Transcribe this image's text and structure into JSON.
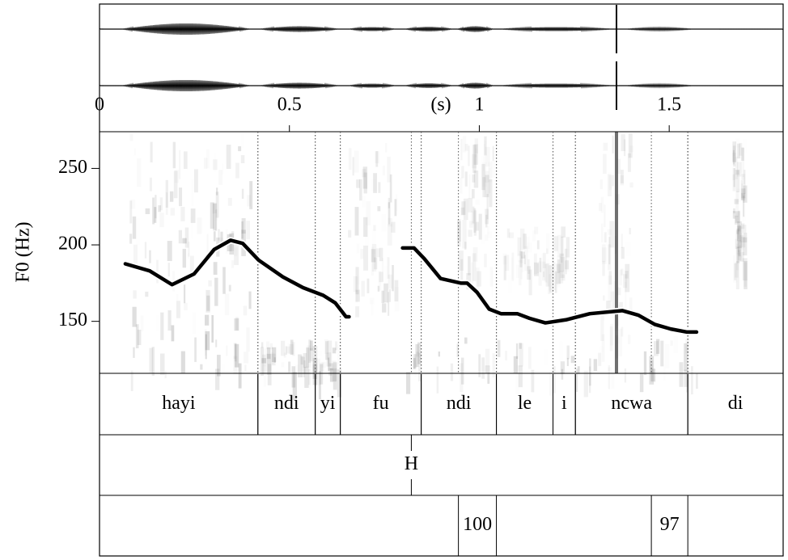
{
  "chart_data": {
    "type": "line",
    "x_label": "(s)",
    "y_label": "F0 (Hz)",
    "xlim": [
      0,
      1.8
    ],
    "xticks": [
      0,
      0.5,
      1,
      1.5
    ],
    "ylim": [
      116,
      274
    ],
    "yticks": [
      150,
      200,
      250
    ],
    "series": [
      {
        "color": "#000000",
        "x": [
          0.068,
          0.132,
          0.191,
          0.249,
          0.302,
          0.345,
          0.377,
          0.419,
          0.483,
          0.536,
          0.589,
          0.621,
          0.649,
          0.657,
          null,
          0.798,
          0.828,
          0.855,
          0.898,
          0.951,
          0.968,
          0.994,
          1.026,
          1.057,
          1.1,
          1.132,
          1.174,
          1.228,
          1.291,
          1.377,
          1.419,
          1.462,
          1.504,
          1.547,
          1.572
        ],
        "values": [
          187.6,
          183,
          174,
          181,
          197,
          203,
          201,
          190,
          179,
          172,
          167,
          162,
          153,
          153,
          null,
          198,
          198,
          191,
          178,
          175,
          175,
          169,
          158,
          155,
          155,
          152,
          149,
          151,
          155,
          157,
          154,
          148,
          145,
          143,
          143
        ]
      }
    ],
    "tiers": [
      {
        "intervals": [
          {
            "label": "hayi",
            "start": 0,
            "end": 0.417
          },
          {
            "label": "ndi",
            "start": 0.417,
            "end": 0.568
          },
          {
            "label": "yi",
            "start": 0.568,
            "end": 0.634
          },
          {
            "label": "fu",
            "start": 0.634,
            "end": 0.847
          },
          {
            "label": "ndi",
            "start": 0.847,
            "end": 1.045
          },
          {
            "label": "le",
            "start": 1.045,
            "end": 1.194
          },
          {
            "label": "i",
            "start": 1.194,
            "end": 1.253
          },
          {
            "label": "ncwa",
            "start": 1.253,
            "end": 1.549
          },
          {
            "label": "di",
            "start": 1.549,
            "end": 1.8
          }
        ]
      },
      {
        "points": [
          {
            "label": "H",
            "time": 0.821
          }
        ]
      },
      {
        "intervals": [
          {
            "label": "100",
            "start": 0.945,
            "end": 1.045
          },
          {
            "label": "97",
            "start": 1.453,
            "end": 1.549
          }
        ]
      }
    ]
  }
}
